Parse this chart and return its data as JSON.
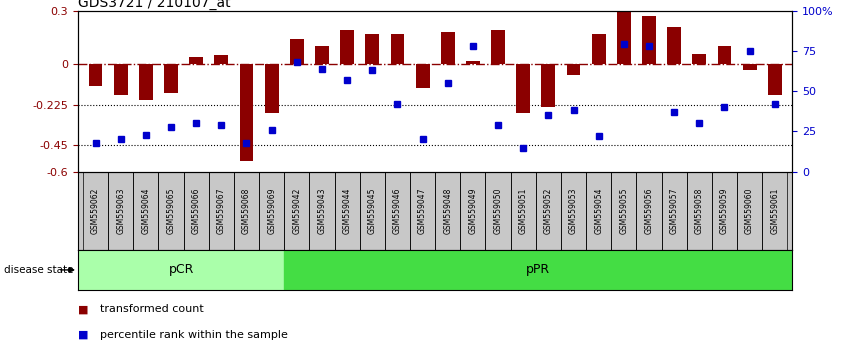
{
  "title": "GDS3721 / 210107_at",
  "samples": [
    "GSM559062",
    "GSM559063",
    "GSM559064",
    "GSM559065",
    "GSM559066",
    "GSM559067",
    "GSM559068",
    "GSM559069",
    "GSM559042",
    "GSM559043",
    "GSM559044",
    "GSM559045",
    "GSM559046",
    "GSM559047",
    "GSM559048",
    "GSM559049",
    "GSM559050",
    "GSM559051",
    "GSM559052",
    "GSM559053",
    "GSM559054",
    "GSM559055",
    "GSM559056",
    "GSM559057",
    "GSM559058",
    "GSM559059",
    "GSM559060",
    "GSM559061"
  ],
  "transformed_count": [
    -0.12,
    -0.17,
    -0.2,
    -0.16,
    0.04,
    0.05,
    -0.54,
    -0.27,
    0.14,
    0.1,
    0.19,
    0.17,
    0.17,
    -0.13,
    0.18,
    0.02,
    0.19,
    -0.27,
    -0.24,
    -0.06,
    0.17,
    0.3,
    0.27,
    0.21,
    0.06,
    0.1,
    -0.03,
    -0.17
  ],
  "percentile_rank": [
    18,
    20,
    23,
    28,
    30,
    29,
    18,
    26,
    68,
    64,
    57,
    63,
    42,
    20,
    55,
    78,
    29,
    15,
    35,
    38,
    22,
    79,
    78,
    37,
    30,
    40,
    75,
    42
  ],
  "pCR_count": 8,
  "pPR_count": 20,
  "bar_color": "#8B0000",
  "dot_color": "#0000CC",
  "xtick_bg_color": "#C8C8C8",
  "pCR_color": "#AAFFAA",
  "pPR_color": "#44DD44",
  "ylim": [
    -0.6,
    0.3
  ],
  "yticks_left": [
    -0.6,
    -0.45,
    -0.225,
    0,
    0.3
  ],
  "yticks_right": [
    0,
    25,
    50,
    75,
    100
  ],
  "hline_dotted1": -0.225,
  "hline_dotted2": -0.45,
  "fig_width": 8.66,
  "fig_height": 3.54,
  "dpi": 100
}
